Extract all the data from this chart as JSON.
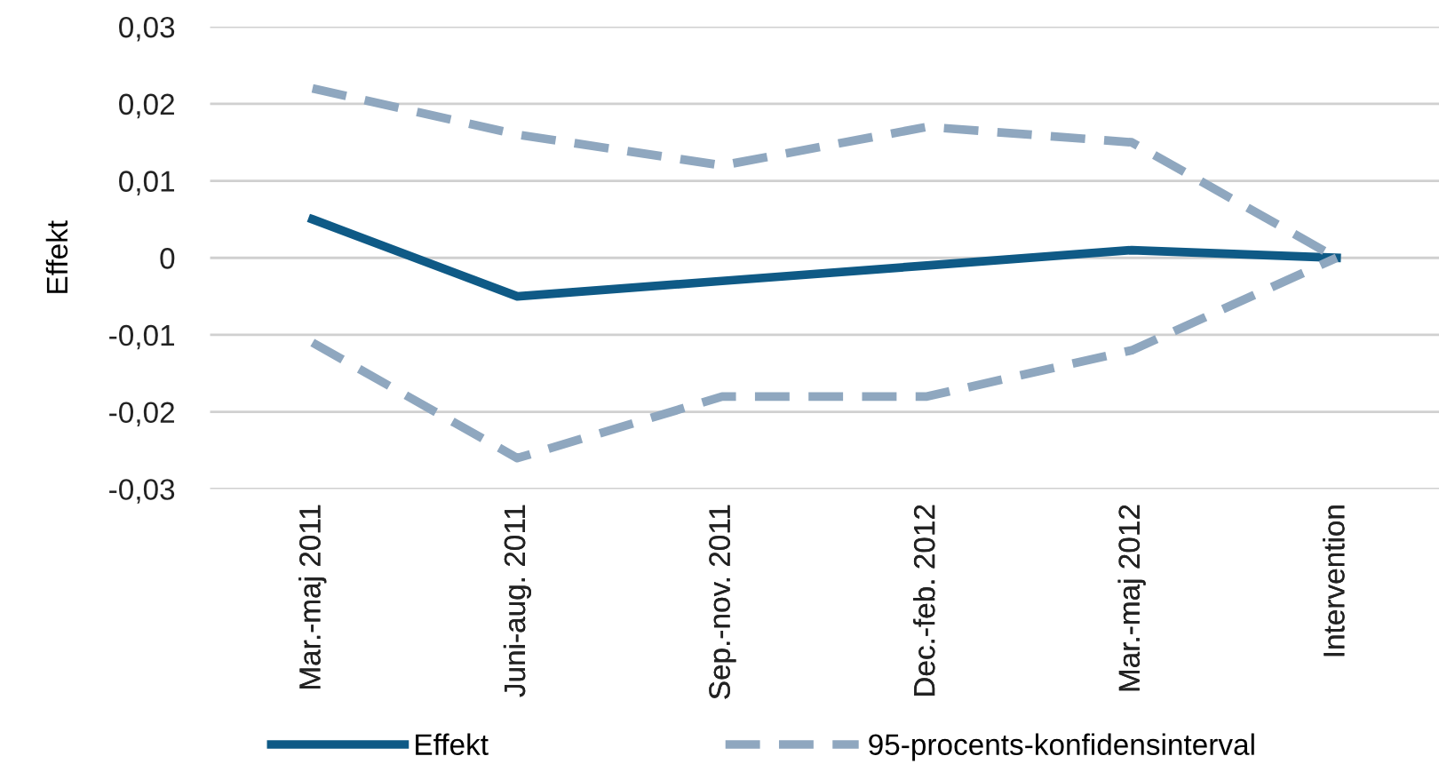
{
  "chart_data": {
    "type": "line",
    "ylabel": "Effekt",
    "categories": [
      "Mar.-maj 2011",
      "Juni-aug. 2011",
      "Sep.-nov. 2011",
      "Dec.-feb. 2012",
      "Mar.-maj 2012",
      "Intervention"
    ],
    "series": [
      {
        "name": "Effekt",
        "color": "#0f5a86",
        "values": [
          0.005,
          -0.005,
          -0.003,
          -0.001,
          0.001,
          0.0
        ],
        "line_style": "solid"
      },
      {
        "name": "95-procents-konfidensinterval",
        "color": "#8fa7bf",
        "values": [
          0.022,
          0.016,
          0.012,
          0.017,
          0.015,
          0.0
        ],
        "line_style": "dashed"
      },
      {
        "color": "#8fa7bf",
        "values": [
          -0.011,
          -0.026,
          -0.018,
          -0.018,
          -0.012,
          0.0
        ],
        "line_style": "dashed"
      }
    ],
    "ylim": [
      -0.03,
      0.03
    ],
    "yticks": [
      {
        "value": -0.03,
        "label": "-0,03"
      },
      {
        "value": -0.02,
        "label": "-0,02"
      },
      {
        "value": -0.01,
        "label": "-0,01"
      },
      0,
      {
        "value": 0.01,
        "label": "0,01"
      },
      {
        "value": 0.02,
        "label": "0,02"
      },
      {
        "value": 0.03,
        "label": "0,03"
      }
    ],
    "grid": "y",
    "legend": "bottom left"
  }
}
